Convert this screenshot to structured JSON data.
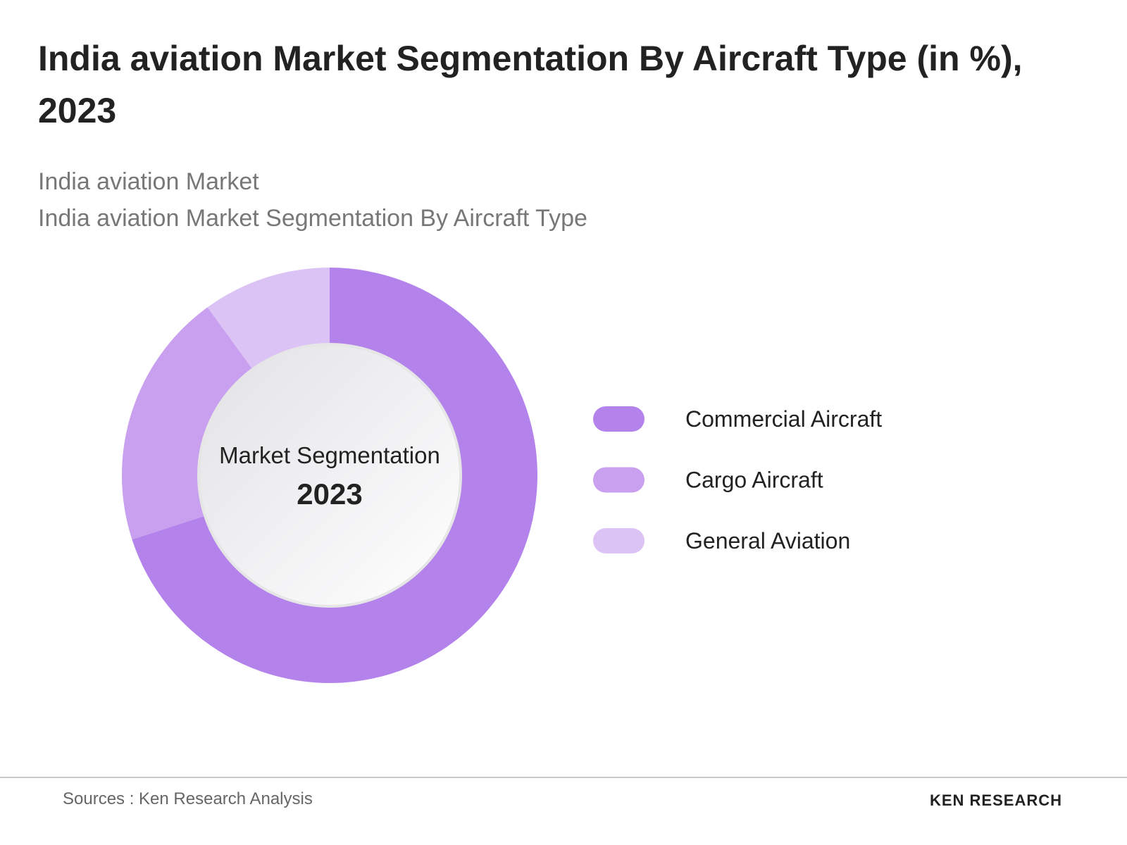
{
  "chart_data": {
    "type": "donut",
    "title": "India aviation Market Segmentation By Aircraft Type (in %), 2023",
    "subtitle": [
      "India aviation Market",
      "India aviation Market Segmentation By Aircraft Type"
    ],
    "center_label": "Market Segmentation",
    "center_year": "2023",
    "categories": [
      "Commercial Aircraft",
      "Cargo Aircraft",
      "General Aviation"
    ],
    "values": [
      70,
      20,
      10
    ],
    "colors": [
      "#b383eb",
      "#c8a0ef",
      "#dcc3f5"
    ]
  },
  "footer": {
    "source": "Sources : Ken Research Analysis",
    "brand": "KEN RESEARCH"
  }
}
